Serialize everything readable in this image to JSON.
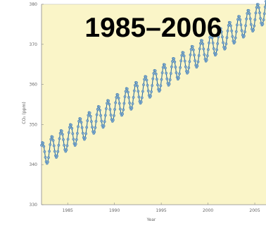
{
  "chart_data": {
    "type": "line",
    "title": "1985–2006",
    "xlabel": "Year",
    "ylabel": "CO₂ (ppm)",
    "xlim": [
      1982.2,
      2006.2
    ],
    "ylim": [
      330,
      380
    ],
    "xticks": [
      1985,
      1990,
      1995,
      2000,
      2005
    ],
    "xtick_labels": [
      "1985",
      "1990",
      "1995",
      "2000",
      "2005"
    ],
    "yticks": [
      330,
      340,
      350,
      360,
      370,
      380
    ],
    "ytick_labels": [
      "330",
      "340",
      "350",
      "360",
      "370",
      "380"
    ],
    "grid": false,
    "series": [
      {
        "x_start": 1982.2,
        "x_end": 2006.2,
        "step": 0.0833,
        "trend_start": 342.4,
        "trend_end": 378.4,
        "seasonal_amplitude": 3.0
      }
    ],
    "colors": {
      "background": "#faf5c8",
      "line": "#2f6fa0",
      "marker": "#7fa9cf",
      "axis": "#8a8a8a"
    }
  }
}
